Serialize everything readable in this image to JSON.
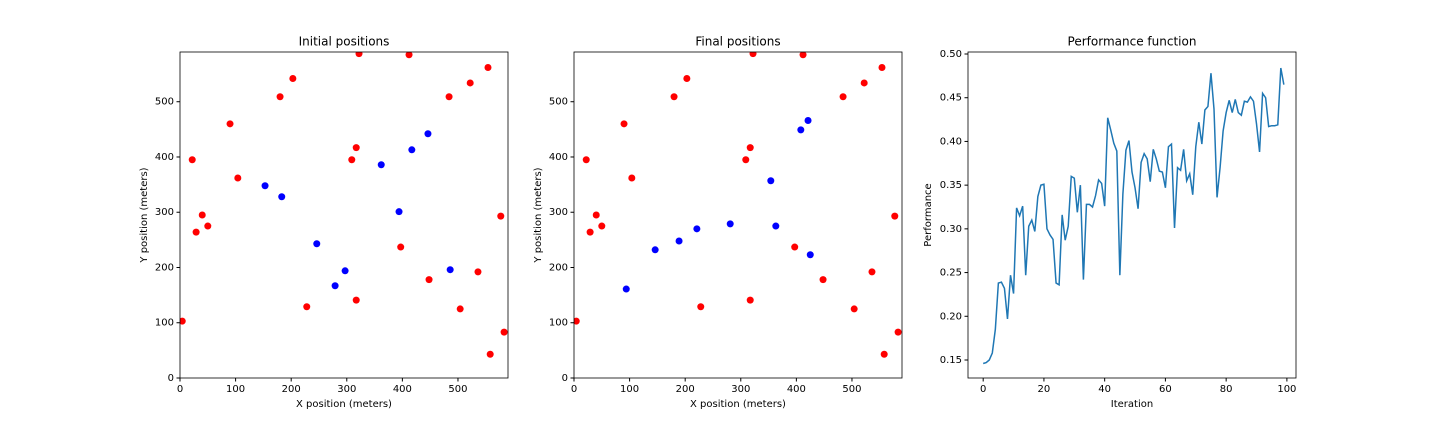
{
  "chart_data": [
    {
      "type": "scatter",
      "title": "Initial positions",
      "xlabel": "X position (meters)",
      "ylabel": "Y position (meters)",
      "xlim": [
        0,
        590
      ],
      "ylim": [
        0,
        590
      ],
      "xticks": [
        0,
        100,
        200,
        300,
        400,
        500
      ],
      "yticks": [
        0,
        100,
        200,
        300,
        400,
        500
      ],
      "series": [
        {
          "color": "#ff0000",
          "x": [
            4,
            22,
            29,
            40,
            50,
            90,
            104,
            180,
            203,
            228,
            309,
            317,
            317,
            322,
            397,
            412,
            448,
            484,
            504,
            522,
            536,
            554,
            558,
            577,
            583
          ],
          "values": [
            103,
            395,
            264,
            295,
            275,
            460,
            362,
            509,
            542,
            129,
            395,
            417,
            141,
            587,
            237,
            585,
            178,
            509,
            125,
            534,
            192,
            562,
            43,
            293,
            83
          ]
        },
        {
          "color": "#0000ff",
          "x": [
            153,
            183,
            246,
            297,
            279,
            362,
            394,
            417,
            446,
            486
          ],
          "values": [
            348,
            328,
            243,
            194,
            167,
            386,
            301,
            413,
            442,
            196
          ]
        }
      ]
    },
    {
      "type": "scatter",
      "title": "Final positions",
      "xlabel": "X position (meters)",
      "ylabel": "Y position (meters)",
      "xlim": [
        0,
        590
      ],
      "ylim": [
        0,
        590
      ],
      "xticks": [
        0,
        100,
        200,
        300,
        400,
        500
      ],
      "yticks": [
        0,
        100,
        200,
        300,
        400,
        500
      ],
      "series": [
        {
          "color": "#ff0000",
          "x": [
            4,
            22,
            29,
            40,
            50,
            90,
            104,
            180,
            203,
            228,
            309,
            317,
            317,
            322,
            397,
            412,
            448,
            484,
            504,
            522,
            536,
            554,
            558,
            577,
            583
          ],
          "values": [
            103,
            395,
            264,
            295,
            275,
            460,
            362,
            509,
            542,
            129,
            395,
            417,
            141,
            587,
            237,
            585,
            178,
            509,
            125,
            534,
            192,
            562,
            43,
            293,
            83
          ]
        },
        {
          "color": "#0000ff",
          "x": [
            94,
            146,
            189,
            221,
            281,
            354,
            363,
            408,
            421,
            425
          ],
          "values": [
            161,
            232,
            248,
            270,
            279,
            357,
            275,
            449,
            466,
            223
          ]
        }
      ]
    },
    {
      "type": "line",
      "title": "Performance function",
      "xlabel": "Iteration",
      "ylabel": "Performance",
      "xlim": [
        -5,
        103
      ],
      "ylim": [
        0.1294,
        0.5023
      ],
      "xticks": [
        0,
        20,
        40,
        60,
        80,
        100
      ],
      "yticks": [
        0.15,
        {
          "value": 0.2,
          "label": "0.20"
        },
        0.25,
        {
          "value": 0.3,
          "label": "0.30"
        },
        0.35,
        {
          "value": 0.4,
          "label": "0.40"
        },
        0.45,
        {
          "value": 0.5,
          "label": "0.50"
        }
      ],
      "series": [
        {
          "color": "#1f77b4",
          "x": [
            0,
            1,
            2,
            3,
            4,
            5,
            6,
            7,
            8,
            9,
            10,
            11,
            12,
            13,
            14,
            15,
            16,
            17,
            18,
            19,
            20,
            21,
            22,
            23,
            24,
            25,
            26,
            27,
            28,
            29,
            30,
            31,
            32,
            33,
            34,
            35,
            36,
            37,
            38,
            39,
            40,
            41,
            42,
            43,
            44,
            45,
            46,
            47,
            48,
            49,
            50,
            51,
            52,
            53,
            54,
            55,
            56,
            57,
            58,
            59,
            60,
            61,
            62,
            63,
            64,
            65,
            66,
            67,
            68,
            69,
            70,
            71,
            72,
            73,
            74,
            75,
            76,
            77,
            78,
            79,
            80,
            81,
            82,
            83,
            84,
            85,
            86,
            87,
            88,
            89,
            90,
            91,
            92,
            93,
            94,
            95,
            96,
            97,
            98,
            99
          ],
          "values": [
            0.146,
            0.147,
            0.15,
            0.158,
            0.185,
            0.238,
            0.239,
            0.232,
            0.197,
            0.247,
            0.226,
            0.324,
            0.315,
            0.326,
            0.247,
            0.303,
            0.31,
            0.297,
            0.337,
            0.35,
            0.351,
            0.3,
            0.293,
            0.288,
            0.238,
            0.236,
            0.316,
            0.287,
            0.303,
            0.36,
            0.358,
            0.319,
            0.35,
            0.242,
            0.328,
            0.328,
            0.325,
            0.338,
            0.356,
            0.352,
            0.326,
            0.427,
            0.413,
            0.398,
            0.389,
            0.247,
            0.34,
            0.39,
            0.401,
            0.365,
            0.347,
            0.323,
            0.376,
            0.386,
            0.38,
            0.354,
            0.391,
            0.38,
            0.366,
            0.365,
            0.347,
            0.394,
            0.397,
            0.301,
            0.37,
            0.367,
            0.391,
            0.355,
            0.363,
            0.339,
            0.394,
            0.422,
            0.397,
            0.436,
            0.44,
            0.478,
            0.437,
            0.336,
            0.37,
            0.412,
            0.433,
            0.447,
            0.433,
            0.448,
            0.433,
            0.43,
            0.446,
            0.445,
            0.451,
            0.446,
            0.42,
            0.388,
            0.455,
            0.45,
            0.417,
            0.418,
            0.418,
            0.419,
            0.484,
            0.465
          ]
        }
      ]
    }
  ]
}
